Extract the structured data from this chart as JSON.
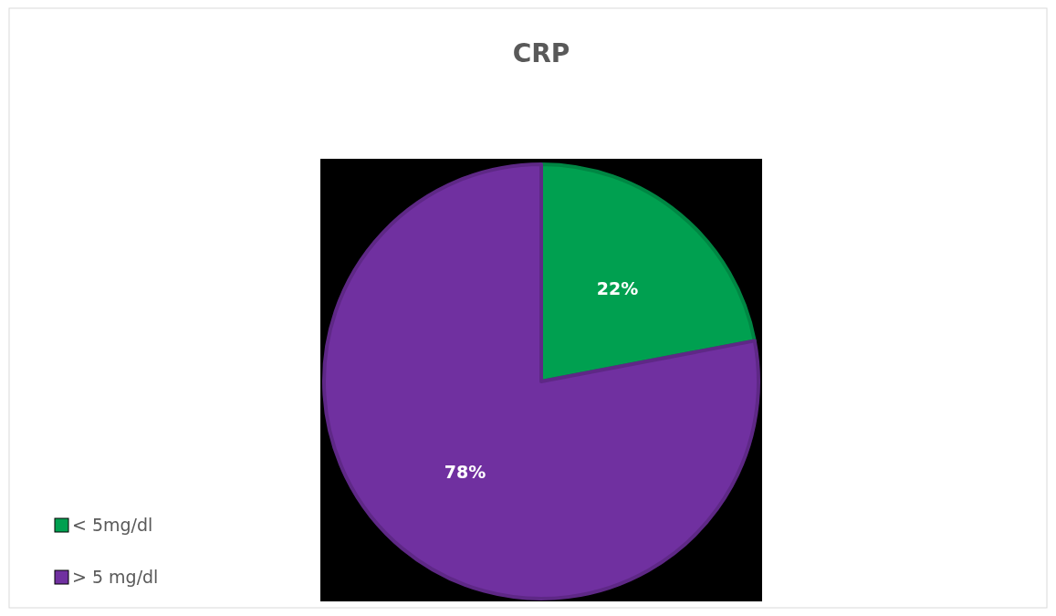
{
  "chart_data": {
    "type": "pie",
    "title": "CRP",
    "categories": [
      "< 5mg/dl",
      "> 5 mg/dl"
    ],
    "values": [
      22,
      78
    ],
    "colors": [
      "#00a050",
      "#7030a0"
    ],
    "value_labels": [
      "22%",
      "78%"
    ],
    "legend": "bottom left"
  }
}
